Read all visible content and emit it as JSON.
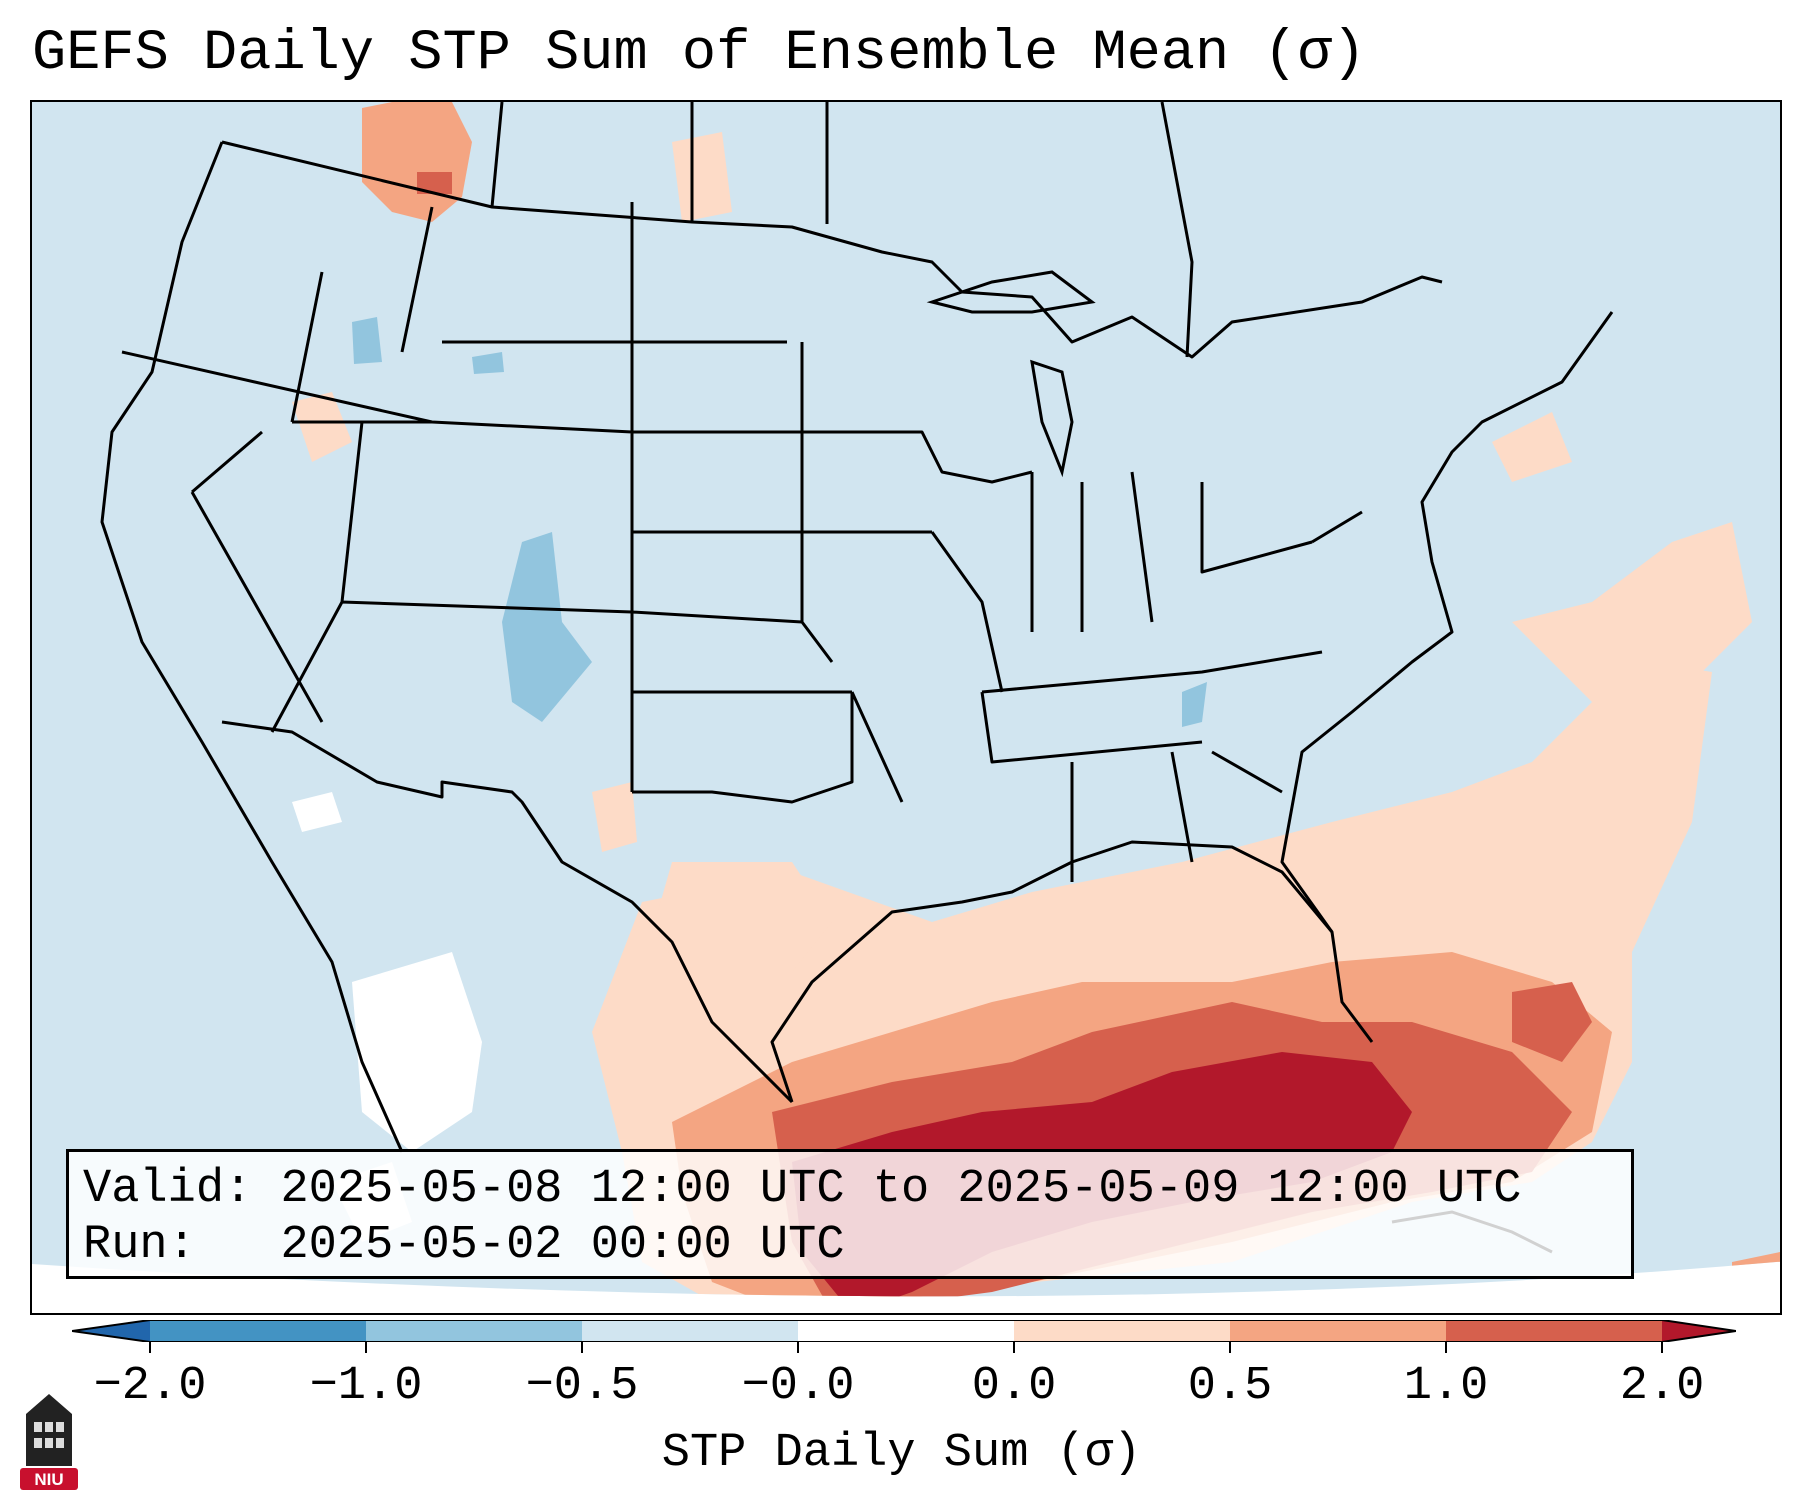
{
  "title": "GEFS Daily STP Sum of Ensemble Mean (σ)",
  "info": {
    "valid_label": "Valid:",
    "valid_value": "2025-05-08 12:00 UTC to 2025-05-09 12:00 UTC",
    "run_label": "Run:",
    "run_value": "2025-05-02 00:00 UTC"
  },
  "colorbar": {
    "label": "STP Daily Sum (σ)",
    "ticks": [
      "−2.0",
      "−1.0",
      "−0.5",
      "−0.0",
      "0.0",
      "0.5",
      "1.0",
      "2.0"
    ],
    "colors": {
      "below_min": "#2166ac",
      "neg_2_to_1": "#4393c3",
      "neg_1_to_05": "#92c5de",
      "neg_05_to_0": "#d1e5f0",
      "zero": "#ffffff",
      "pos_0_to_05": "#fddbc7",
      "pos_05_to_1": "#f4a582",
      "pos_1_to_2": "#d6604d",
      "above_max": "#b2182b"
    }
  },
  "map": {
    "background_color": "#d1e5f0",
    "region": "Continental United States"
  },
  "logo": {
    "text": "NIU",
    "color": "#c8102e"
  }
}
